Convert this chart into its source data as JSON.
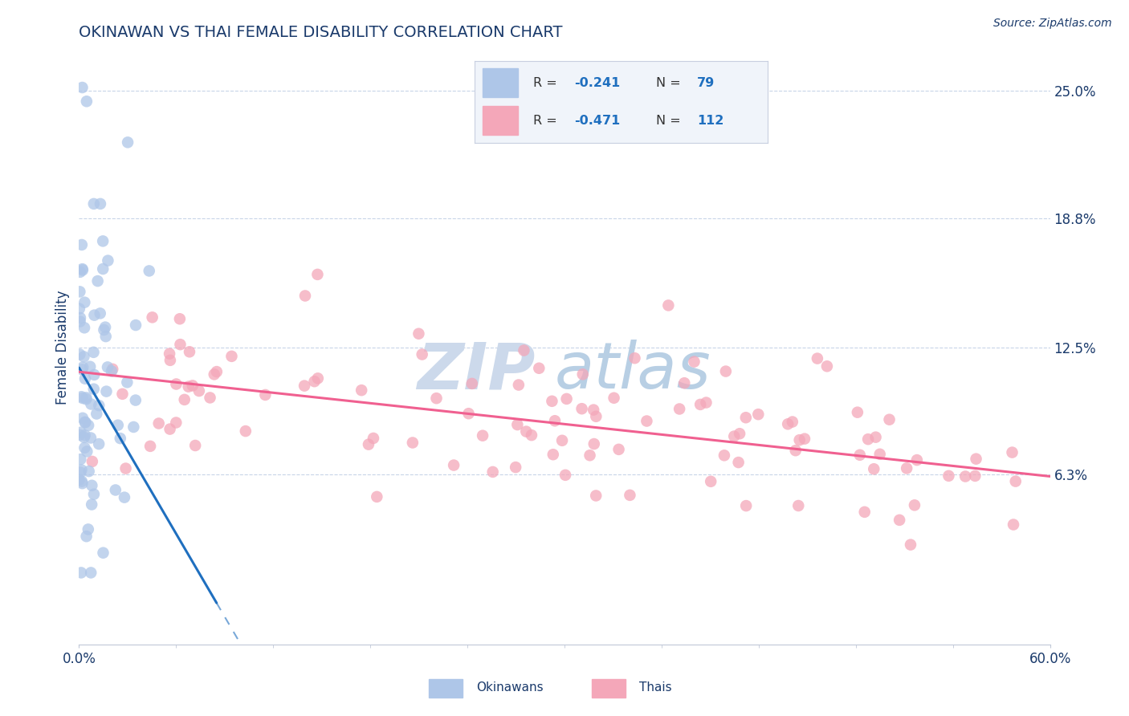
{
  "title": "OKINAWAN VS THAI FEMALE DISABILITY CORRELATION CHART",
  "source": "Source: ZipAtlas.com",
  "ylabel": "Female Disability",
  "xlim": [
    0.0,
    0.6
  ],
  "ylim": [
    -0.02,
    0.27
  ],
  "plot_ylim": [
    0.0,
    0.27
  ],
  "x_tick_labels": [
    "0.0%",
    "60.0%"
  ],
  "y_tick_labels_right": [
    "25.0%",
    "18.8%",
    "12.5%",
    "6.3%"
  ],
  "y_tick_values_right": [
    0.25,
    0.188,
    0.125,
    0.063
  ],
  "legend_r1": "-0.241",
  "legend_n1": "79",
  "legend_r2": "-0.471",
  "legend_n2": "112",
  "okinawan_color": "#aec6e8",
  "thai_color": "#f4a7b9",
  "okinawan_line_color": "#1f6fbf",
  "thai_line_color": "#f06090",
  "background_color": "#ffffff",
  "watermark_color": "#ccd9eb",
  "grid_color": "#c8d4e8",
  "title_color": "#1a3a6b",
  "label_color": "#1a3a6b",
  "tick_color": "#1a3a6b",
  "legend_bg": "#f0f4fa",
  "legend_border": "#c8cfe0"
}
